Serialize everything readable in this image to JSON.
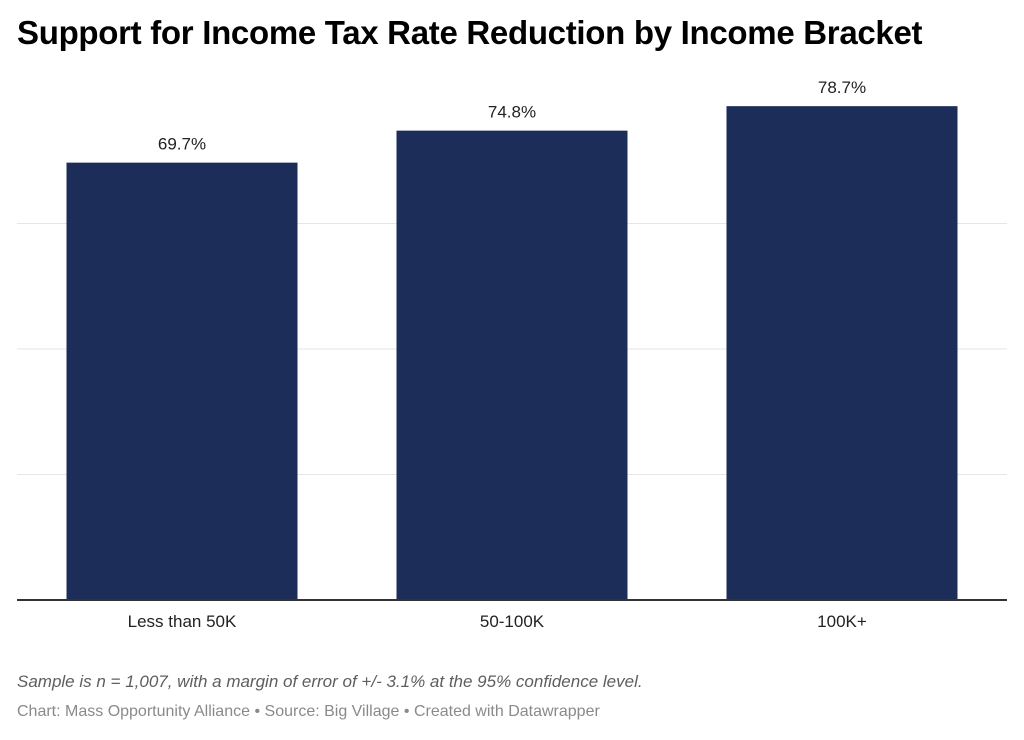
{
  "title": "Support for Income Tax Rate Reduction by Income Bracket",
  "note": "Sample is n = 1,007, with a margin of error of +/- 3.1% at the 95% confidence level.",
  "credit": {
    "chart_label": "Chart: Mass Opportunity Alliance",
    "separator": "•",
    "source_label": "Source: Big Village",
    "tool_label": "Created with Datawrapper"
  },
  "colors": {
    "bar": "#1c2d5a",
    "gridline": "#e6e6e6",
    "baseline": "#333333",
    "label": "#222222"
  },
  "chart_data": {
    "type": "bar",
    "title": "Support for Income Tax Rate Reduction by Income Bracket",
    "categories": [
      "Less than 50K",
      "50-100K",
      "100K+"
    ],
    "values": [
      69.7,
      74.8,
      78.7
    ],
    "value_labels": [
      "69.7%",
      "74.8%",
      "78.7%"
    ],
    "unit": "%",
    "xlabel": "",
    "ylabel": "",
    "ylim": [
      0,
      80
    ],
    "gridlines": [
      20,
      40,
      60
    ],
    "grid": true,
    "y_tick_labels_visible": false,
    "legend": "none"
  }
}
